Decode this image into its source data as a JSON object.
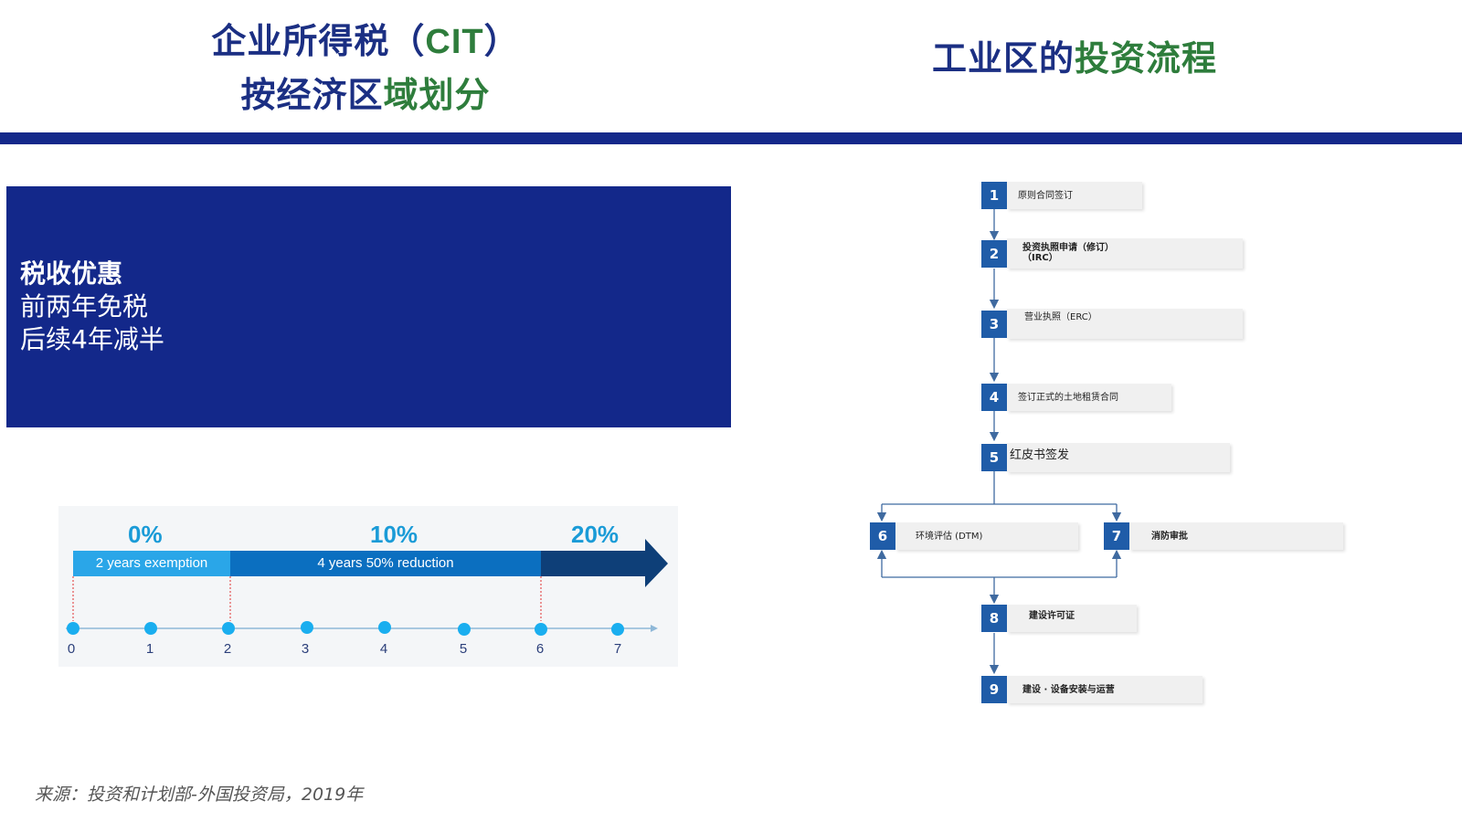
{
  "left_title": {
    "line1_a": "企业所得税（",
    "line1_b": "CIT",
    "line1_c": "）",
    "line2_a": "按经济区",
    "line2_b": "域划分"
  },
  "right_title": {
    "part_a": "工业区的",
    "part_b": "投资流程"
  },
  "incentive": {
    "heading": "税收优惠",
    "line1": "前两年免税",
    "line2": "后续4年减半"
  },
  "timeline": {
    "rates": [
      "0%",
      "10%",
      "20%"
    ],
    "segments": [
      "2 years exemption",
      "4 years 50% reduction"
    ],
    "ticks": [
      "0",
      "1",
      "2",
      "3",
      "4",
      "5",
      "6",
      "7"
    ],
    "colors": {
      "light": "#2aa6e8",
      "mid": "#0b6fc0",
      "dark": "#0e3f78",
      "dot": "#1aaeef"
    }
  },
  "source": "来源：投资和计划部-外国投资局，2019年",
  "flow": {
    "steps": [
      {
        "num": "1",
        "label": "原则合同签订"
      },
      {
        "num": "2",
        "label": "投资执照申请（修订）\n（IRC）"
      },
      {
        "num": "3",
        "label": "营业执照（ERC）"
      },
      {
        "num": "4",
        "label": "签订正式的土地租赁合同"
      },
      {
        "num": "5",
        "label": "红皮书签发"
      },
      {
        "num": "6",
        "label": "环境评估 (DTM)"
      },
      {
        "num": "7",
        "label": "消防审批"
      },
      {
        "num": "8",
        "label": "建设许可证"
      },
      {
        "num": "9",
        "label": "建设 · 设备安装与运营"
      }
    ],
    "colors": {
      "number_bg": "#1f5ca8",
      "box_bg": "#f0f0f0",
      "line": "#3f6aa0"
    }
  }
}
